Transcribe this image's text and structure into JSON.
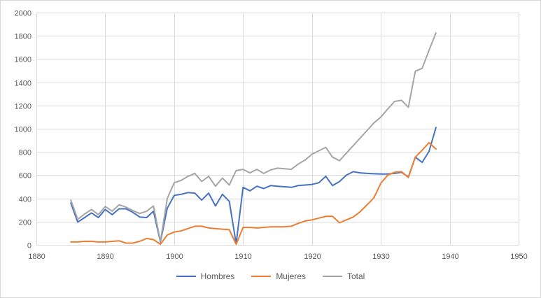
{
  "chart_data": {
    "type": "line",
    "title": "",
    "xlabel": "",
    "ylabel": "",
    "xlim": [
      1880,
      1950
    ],
    "ylim": [
      0,
      2000
    ],
    "x_ticks": [
      1880,
      1890,
      1900,
      1910,
      1920,
      1930,
      1940,
      1950
    ],
    "y_ticks": [
      0,
      200,
      400,
      600,
      800,
      1000,
      1200,
      1400,
      1600,
      1800,
      2000
    ],
    "grid": true,
    "legend_position": "bottom",
    "x": [
      1885,
      1886,
      1887,
      1888,
      1889,
      1890,
      1891,
      1892,
      1893,
      1894,
      1895,
      1896,
      1897,
      1898,
      1899,
      1900,
      1901,
      1902,
      1903,
      1904,
      1905,
      1906,
      1907,
      1908,
      1909,
      1910,
      1911,
      1912,
      1913,
      1914,
      1915,
      1916,
      1917,
      1918,
      1919,
      1920,
      1921,
      1922,
      1923,
      1924,
      1925,
      1926,
      1927,
      1928,
      1929,
      1930,
      1931,
      1932,
      1933,
      1934,
      1935,
      1936,
      1937,
      1938
    ],
    "series": [
      {
        "name": "Hombres",
        "color": "#4472C4",
        "values": [
          360,
          195,
          235,
          275,
          235,
          305,
          260,
          310,
          310,
          280,
          240,
          235,
          290,
          25,
          315,
          425,
          435,
          450,
          445,
          385,
          445,
          335,
          435,
          375,
          10,
          495,
          465,
          505,
          485,
          510,
          505,
          500,
          495,
          510,
          515,
          520,
          535,
          590,
          510,
          545,
          600,
          630,
          620,
          615,
          612,
          610,
          610,
          615,
          625,
          585,
          755,
          710,
          805,
          1010
        ]
      },
      {
        "name": "Mujeres",
        "color": "#ED7D31",
        "values": [
          25,
          25,
          30,
          30,
          25,
          25,
          30,
          35,
          15,
          15,
          30,
          55,
          45,
          5,
          85,
          110,
          120,
          140,
          160,
          160,
          145,
          140,
          135,
          130,
          5,
          150,
          150,
          145,
          150,
          155,
          155,
          155,
          160,
          185,
          205,
          215,
          230,
          245,
          245,
          190,
          215,
          240,
          285,
          345,
          405,
          530,
          600,
          625,
          630,
          580,
          755,
          815,
          880,
          825
        ]
      },
      {
        "name": "Total",
        "color": "#A5A5A5",
        "values": [
          385,
          220,
          265,
          305,
          260,
          330,
          290,
          345,
          325,
          295,
          270,
          290,
          335,
          30,
          400,
          535,
          555,
          590,
          615,
          545,
          590,
          505,
          575,
          515,
          640,
          650,
          620,
          650,
          615,
          645,
          660,
          655,
          650,
          695,
          730,
          780,
          810,
          840,
          755,
          725,
          790,
          855,
          920,
          985,
          1050,
          1100,
          1170,
          1235,
          1245,
          1185,
          1495,
          1520,
          1675,
          1825
        ]
      }
    ]
  },
  "colors": {
    "background": "#FFFFFF",
    "gridline": "#D9D9D9",
    "plot_border": "#D9D9D9",
    "axis_text": "#595959",
    "hombres": "#4472C4",
    "mujeres": "#ED7D31",
    "total": "#A5A5A5"
  },
  "legend": {
    "items": [
      "Hombres",
      "Mujeres",
      "Total"
    ]
  }
}
